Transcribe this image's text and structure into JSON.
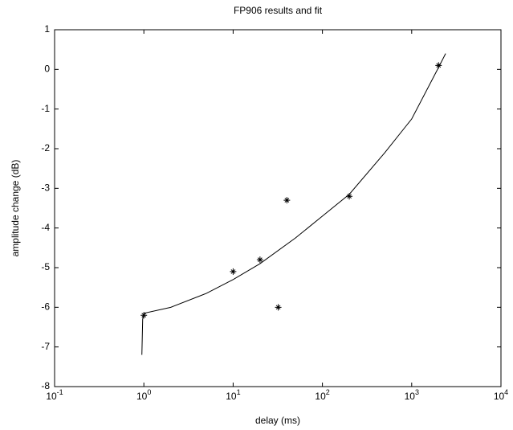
{
  "chart_data": {
    "type": "scatter",
    "title": "FP906 results and fit",
    "xlabel": "delay (ms)",
    "ylabel": "amplitude change (dB)",
    "xscale": "log",
    "xlim": [
      0.1,
      10000
    ],
    "ylim": [
      -8,
      1
    ],
    "xticks": [
      {
        "value": 0.1,
        "label": "10",
        "exponent": "-1"
      },
      {
        "value": 1,
        "label": "10",
        "exponent": "0"
      },
      {
        "value": 10,
        "label": "10",
        "exponent": "1"
      },
      {
        "value": 100,
        "label": "10",
        "exponent": "2"
      },
      {
        "value": 1000,
        "label": "10",
        "exponent": "3"
      },
      {
        "value": 10000,
        "label": "10",
        "exponent": "4"
      }
    ],
    "yticks": [
      1,
      0,
      -1,
      -2,
      -3,
      -4,
      -5,
      -6,
      -7,
      -8
    ],
    "series": [
      {
        "type": "scatter",
        "color": "#000000",
        "x": [
          1,
          10,
          20,
          32,
          40,
          200,
          2000
        ],
        "y": [
          -6.2,
          -5.1,
          -4.8,
          -6.0,
          -3.3,
          -3.2,
          0.1
        ]
      },
      {
        "type": "line",
        "color": "#000000",
        "x": [
          0.95,
          0.97,
          1,
          2,
          5,
          10,
          20,
          50,
          100,
          200,
          500,
          1000,
          2000,
          2400
        ],
        "y": [
          -7.2,
          -6.3,
          -6.15,
          -6.0,
          -5.65,
          -5.3,
          -4.9,
          -4.25,
          -3.7,
          -3.15,
          -2.1,
          -1.25,
          0.05,
          0.4
        ]
      }
    ]
  }
}
